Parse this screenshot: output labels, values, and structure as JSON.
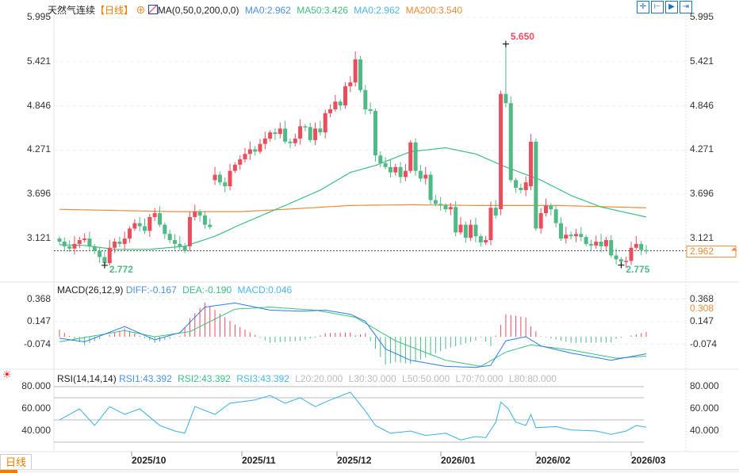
{
  "header": {
    "title": "天然气连续",
    "period": "【日线】",
    "ma_label": "MA(0,50,0,200,0,0)",
    "ma0": "MA0:2.962",
    "ma50": "MA50:3.426",
    "ma0b": "MA0:2.962",
    "ma200": "MA200:3.540"
  },
  "macd_header": {
    "label": "MACD(26,12,9)",
    "diff": "DIFF:-0.167",
    "dea": "DEA:-0.190",
    "macd": "MACD:0.046"
  },
  "rsi_header": {
    "label": "RSI(14,14,14)",
    "rsi1": "RSI1:43.392",
    "rsi2": "RSI2:43.392",
    "rsi3": "RSI3:43.392",
    "l20": "L20:20.000",
    "l30": "L30:30.000",
    "l50": "L50:50.000",
    "l70": "L70:70.000",
    "l80": "L80:80.000"
  },
  "footer": {
    "period_button": "日线▲"
  },
  "colors": {
    "up": "#ec4d5c",
    "down": "#4fba85",
    "ma50": "#3cc07f",
    "ma200": "#f08a3a",
    "diff": "#2a7ce8",
    "dea": "#3cc07f",
    "rsi": "#3ab0e8",
    "last": "#1a73e8"
  },
  "chart_data": [
    {
      "type": "candlestick",
      "title": "天然气连续 日线",
      "y_ticks": [
        "5.995",
        "5.421",
        "4.846",
        "4.271",
        "3.696",
        "3.121"
      ],
      "ylim": [
        2.7,
        6.0
      ],
      "x_ticks": [
        "2025/10",
        "2025/11",
        "2025/12",
        "2026/01",
        "2026/02",
        "2026/03"
      ],
      "closes": [
        3.08,
        3.02,
        2.99,
        3.05,
        3.1,
        3.12,
        3.02,
        2.96,
        2.88,
        2.8,
        3.0,
        3.08,
        3.05,
        3.12,
        3.25,
        3.32,
        3.28,
        3.22,
        3.4,
        3.45,
        3.3,
        3.18,
        3.1,
        3.05,
        3.02,
        2.96,
        3.4,
        3.47,
        3.42,
        3.3,
        3.27,
        3.95,
        3.85,
        3.8,
        4.0,
        4.08,
        4.15,
        4.22,
        4.28,
        4.25,
        4.35,
        4.42,
        4.5,
        4.48,
        4.55,
        4.38,
        4.36,
        4.42,
        4.58,
        4.57,
        4.4,
        4.55,
        4.5,
        4.75,
        4.8,
        4.9,
        4.85,
        5.1,
        5.15,
        5.45,
        5.05,
        4.8,
        4.78,
        4.2,
        4.1,
        4.05,
        3.98,
        4.05,
        3.92,
        4.0,
        4.37,
        4.0,
        3.9,
        3.95,
        3.62,
        3.57,
        3.55,
        3.5,
        3.53,
        3.2,
        3.3,
        3.13,
        3.3,
        3.15,
        3.07,
        3.1,
        3.52,
        3.42,
        5.0,
        4.88,
        3.88,
        3.78,
        3.75,
        3.85,
        4.38,
        3.25,
        3.45,
        3.55,
        3.5,
        3.32,
        3.12,
        3.17,
        3.15,
        3.18,
        3.14,
        3.05,
        3.03,
        3.08,
        3.02,
        3.1,
        2.9,
        2.85,
        2.82,
        2.83,
        3.0,
        3.05,
        2.97,
        2.96
      ],
      "open_first": 3.12,
      "gap_opens": {
        "26": 3.02,
        "31": 3.88,
        "88": 3.5,
        "94": 3.8
      },
      "high_label": "5.650",
      "high_value": 5.65,
      "high_index": 89,
      "low_label": "2.772",
      "low_value": 2.772,
      "low_index": 9,
      "low2_label": "2.775",
      "low2_value": 2.775,
      "low2_index": 112,
      "last_price": "2.962",
      "last_value": 2.962,
      "ma50": [
        [
          0,
          3.04
        ],
        [
          5,
          3.03
        ],
        [
          11,
          2.98
        ],
        [
          18,
          2.98
        ],
        [
          25,
          3.02
        ],
        [
          31,
          3.15
        ],
        [
          36,
          3.3
        ],
        [
          45,
          3.55
        ],
        [
          52,
          3.75
        ],
        [
          58,
          3.98
        ],
        [
          63,
          4.07
        ],
        [
          70,
          4.25
        ],
        [
          77,
          4.3
        ],
        [
          83,
          4.22
        ],
        [
          89,
          4.05
        ],
        [
          96,
          3.88
        ],
        [
          102,
          3.68
        ],
        [
          108,
          3.53
        ],
        [
          117,
          3.4
        ]
      ],
      "ma200": [
        [
          0,
          3.5
        ],
        [
          23,
          3.47
        ],
        [
          36,
          3.47
        ],
        [
          45,
          3.5
        ],
        [
          58,
          3.55
        ],
        [
          70,
          3.56
        ],
        [
          83,
          3.55
        ],
        [
          99,
          3.55
        ],
        [
          117,
          3.52
        ]
      ]
    },
    {
      "type": "line",
      "title": "MACD(26,12,9)",
      "y_ticks": [
        "0.368",
        "0.147",
        "-0.074"
      ],
      "right_marker": "0.308",
      "diff": [
        [
          0,
          -0.015
        ],
        [
          5,
          -0.05
        ],
        [
          13,
          0.1
        ],
        [
          19,
          -0.03
        ],
        [
          24,
          0.04
        ],
        [
          29,
          0.29
        ],
        [
          35,
          0.33
        ],
        [
          42,
          0.26
        ],
        [
          48,
          0.25
        ],
        [
          53,
          0.26
        ],
        [
          58,
          0.22
        ],
        [
          61,
          0.15
        ],
        [
          65,
          -0.12
        ],
        [
          70,
          -0.23
        ],
        [
          77,
          -0.29
        ],
        [
          83,
          -0.3
        ],
        [
          86,
          -0.28
        ],
        [
          89,
          -0.04
        ],
        [
          93,
          0.0
        ],
        [
          96,
          -0.09
        ],
        [
          102,
          -0.16
        ],
        [
          110,
          -0.23
        ],
        [
          117,
          -0.167
        ]
      ],
      "dea": [
        [
          0,
          -0.05
        ],
        [
          13,
          0.06
        ],
        [
          19,
          0.0
        ],
        [
          26,
          0.05
        ],
        [
          35,
          0.27
        ],
        [
          42,
          0.29
        ],
        [
          51,
          0.26
        ],
        [
          59,
          0.19
        ],
        [
          67,
          -0.04
        ],
        [
          77,
          -0.23
        ],
        [
          84,
          -0.29
        ],
        [
          89,
          -0.15
        ],
        [
          94,
          -0.08
        ],
        [
          102,
          -0.13
        ],
        [
          111,
          -0.21
        ],
        [
          117,
          -0.19
        ]
      ]
    },
    {
      "type": "line",
      "title": "RSI(14,14,14)",
      "y_ticks": [
        "80.000",
        "60.000",
        "40.000"
      ],
      "levels": [
        20,
        30,
        50,
        70,
        80
      ],
      "rsi": [
        [
          0,
          50
        ],
        [
          4,
          60
        ],
        [
          7,
          45
        ],
        [
          10,
          62
        ],
        [
          13,
          55
        ],
        [
          16,
          60
        ],
        [
          20,
          45
        ],
        [
          23,
          40
        ],
        [
          25,
          38
        ],
        [
          27,
          62
        ],
        [
          31,
          55
        ],
        [
          34,
          65
        ],
        [
          39,
          68
        ],
        [
          42,
          72
        ],
        [
          45,
          65
        ],
        [
          48,
          70
        ],
        [
          51,
          62
        ],
        [
          54,
          68
        ],
        [
          58,
          75
        ],
        [
          61,
          58
        ],
        [
          63,
          45
        ],
        [
          66,
          38
        ],
        [
          70,
          40
        ],
        [
          73,
          36
        ],
        [
          77,
          38
        ],
        [
          80,
          32
        ],
        [
          83,
          35
        ],
        [
          85,
          34
        ],
        [
          87,
          48
        ],
        [
          88,
          66
        ],
        [
          89.5,
          60
        ],
        [
          91,
          48
        ],
        [
          93,
          45
        ],
        [
          94,
          55
        ],
        [
          95,
          43
        ],
        [
          99,
          44
        ],
        [
          102,
          41
        ],
        [
          107,
          40
        ],
        [
          110,
          37
        ],
        [
          113,
          40
        ],
        [
          115,
          45
        ],
        [
          117,
          43.4
        ]
      ]
    }
  ]
}
